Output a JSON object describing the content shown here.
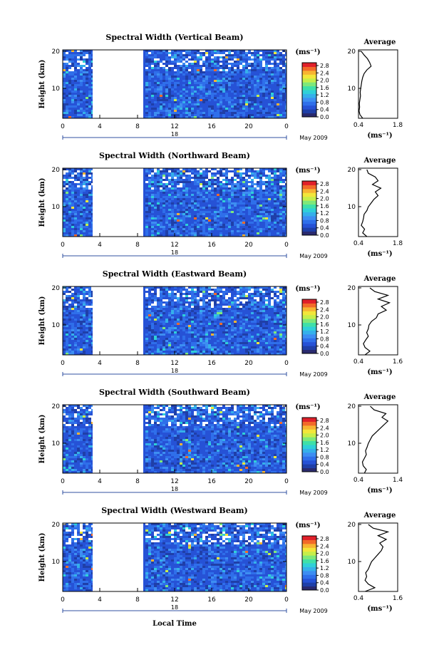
{
  "x_axis_title": "Local Time",
  "x_ticks": [
    "0",
    "4",
    "8",
    "12",
    "16",
    "20",
    "0"
  ],
  "day_marker": "18",
  "month_label": "May 2009",
  "y_axis_title": "Height (km)",
  "y_ticks": [
    "20",
    "10"
  ],
  "colorbar": {
    "unit": "(ms⁻¹)",
    "ticks": [
      "2.8",
      "2.4",
      "2.0",
      "1.6",
      "1.2",
      "0.8",
      "0.4",
      "0.0"
    ],
    "colors": [
      "#2a2a6e",
      "#1f3fa8",
      "#2652d6",
      "#2f6fea",
      "#3d8ef2",
      "#35b0ea",
      "#2fd0d8",
      "#3fe0a8",
      "#7ee87a",
      "#c6ee4a",
      "#f2e63a",
      "#f7b432",
      "#f26a2a",
      "#e0202a"
    ]
  },
  "avg_title": "Average",
  "avg_unit": "(ms⁻¹)",
  "chart_data": [
    {
      "type": "heatmap",
      "title": "Spectral Width (Vertical Beam)",
      "ylabel": "Height (km)",
      "xlabel": "Local Time",
      "x_range_hours": [
        0,
        24
      ],
      "y_range_km": [
        2,
        20
      ],
      "data_gap_hours": [
        3.1,
        8.6
      ],
      "value_range": [
        0.0,
        2.8
      ],
      "average_profile": {
        "xlabel": "(ms⁻¹)",
        "xlim": [
          0.4,
          1.8
        ],
        "ticks": [
          "0.4",
          "1.8"
        ],
        "height_km": [
          2,
          3,
          4,
          5,
          6,
          7,
          8,
          9,
          10,
          11,
          12,
          13,
          14,
          15,
          16,
          17,
          18,
          19,
          20
        ],
        "value": [
          0.55,
          0.45,
          0.42,
          0.44,
          0.43,
          0.45,
          0.47,
          0.46,
          0.48,
          0.5,
          0.52,
          0.55,
          0.6,
          0.7,
          0.85,
          0.8,
          0.72,
          0.6,
          0.5
        ]
      }
    },
    {
      "type": "heatmap",
      "title": "Spectral Width (Northward Beam)",
      "ylabel": "Height (km)",
      "xlabel": "Local Time",
      "x_range_hours": [
        0,
        24
      ],
      "y_range_km": [
        2,
        20
      ],
      "data_gap_hours": [
        3.1,
        8.6
      ],
      "value_range": [
        0.0,
        2.8
      ],
      "average_profile": {
        "xlabel": "(ms⁻¹)",
        "xlim": [
          0.4,
          1.8
        ],
        "ticks": [
          "0.4",
          "1.8"
        ],
        "height_km": [
          2,
          3,
          4,
          5,
          6,
          7,
          8,
          9,
          10,
          11,
          12,
          13,
          14,
          15,
          16,
          17,
          18,
          19,
          20
        ],
        "value": [
          0.7,
          0.55,
          0.62,
          0.5,
          0.55,
          0.58,
          0.6,
          0.7,
          0.75,
          0.85,
          0.95,
          1.1,
          1.0,
          1.2,
          0.9,
          1.1,
          1.0,
          0.75,
          0.7
        ]
      }
    },
    {
      "type": "heatmap",
      "title": "Spectral Width (Eastward Beam)",
      "ylabel": "Height (km)",
      "xlabel": "Local Time",
      "x_range_hours": [
        0,
        24
      ],
      "y_range_km": [
        2,
        20
      ],
      "data_gap_hours": [
        3.1,
        8.6
      ],
      "value_range": [
        0.0,
        2.8
      ],
      "average_profile": {
        "xlabel": "(ms⁻¹)",
        "xlim": [
          0.4,
          1.6
        ],
        "ticks": [
          "0.4",
          "1.6"
        ],
        "height_km": [
          2,
          3,
          4,
          5,
          6,
          7,
          8,
          9,
          10,
          11,
          12,
          13,
          14,
          15,
          16,
          17,
          18,
          19,
          20
        ],
        "value": [
          0.6,
          0.75,
          0.6,
          0.55,
          0.62,
          0.7,
          0.65,
          0.7,
          0.72,
          0.8,
          0.95,
          1.0,
          1.25,
          1.1,
          1.35,
          1.0,
          1.3,
          0.9,
          0.75
        ]
      }
    },
    {
      "type": "heatmap",
      "title": "Spectral Width (Southward Beam)",
      "ylabel": "Height (km)",
      "xlabel": "Local Time",
      "x_range_hours": [
        0,
        24
      ],
      "y_range_km": [
        2,
        20
      ],
      "data_gap_hours": [
        3.1,
        8.6
      ],
      "value_range": [
        0.0,
        2.8
      ],
      "average_profile": {
        "xlabel": "(ms⁻¹)",
        "xlim": [
          0.4,
          1.4
        ],
        "ticks": [
          "0.4",
          "1.4"
        ],
        "height_km": [
          2,
          3,
          4,
          5,
          6,
          7,
          8,
          9,
          10,
          11,
          12,
          13,
          14,
          15,
          16,
          17,
          18,
          19,
          20
        ],
        "value": [
          0.55,
          0.6,
          0.52,
          0.5,
          0.55,
          0.6,
          0.58,
          0.62,
          0.65,
          0.7,
          0.75,
          0.85,
          0.95,
          1.05,
          1.15,
          1.0,
          1.1,
          0.8,
          0.7
        ]
      }
    },
    {
      "type": "heatmap",
      "title": "Spectral Width (Westward Beam)",
      "ylabel": "Height (km)",
      "xlabel": "Local Time",
      "x_range_hours": [
        0,
        24
      ],
      "y_range_km": [
        2,
        20
      ],
      "data_gap_hours": [
        3.1,
        8.6
      ],
      "value_range": [
        0.0,
        2.8
      ],
      "average_profile": {
        "xlabel": "(ms⁻¹)",
        "xlim": [
          0.4,
          1.6
        ],
        "ticks": [
          "0.4",
          "1.6"
        ],
        "height_km": [
          2,
          3,
          4,
          5,
          6,
          7,
          8,
          9,
          10,
          11,
          12,
          13,
          14,
          15,
          16,
          17,
          18,
          19,
          20
        ],
        "value": [
          0.6,
          0.9,
          0.7,
          0.6,
          0.65,
          0.62,
          0.7,
          0.75,
          0.8,
          0.9,
          1.0,
          1.1,
          1.15,
          1.05,
          1.25,
          1.0,
          1.3,
          0.85,
          0.7
        ]
      }
    }
  ]
}
